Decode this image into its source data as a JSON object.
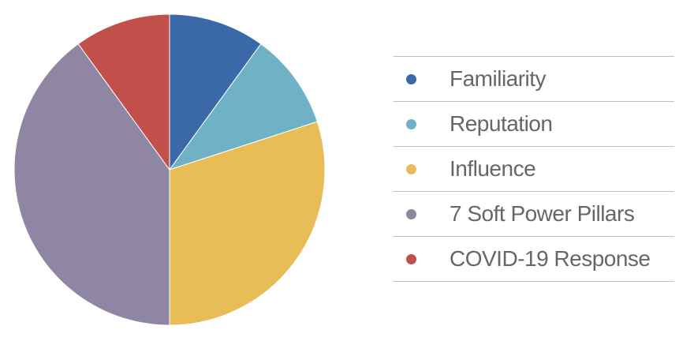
{
  "chart_data": {
    "type": "pie",
    "title": "",
    "start": "12 o'clock",
    "direction": "clockwise",
    "slices": [
      {
        "label": "Familiarity",
        "value": 10,
        "color": "#3a68a8"
      },
      {
        "label": "Reputation",
        "value": 10,
        "color": "#6fb2c6"
      },
      {
        "label": "Influence",
        "value": 30,
        "color": "#e8bd57"
      },
      {
        "label": "7 Soft Power Pillars",
        "value": 40,
        "color": "#8e86a2"
      },
      {
        "label": "COVID-19 Response",
        "value": 10,
        "color": "#c2504a"
      }
    ],
    "legend_position": "right"
  }
}
